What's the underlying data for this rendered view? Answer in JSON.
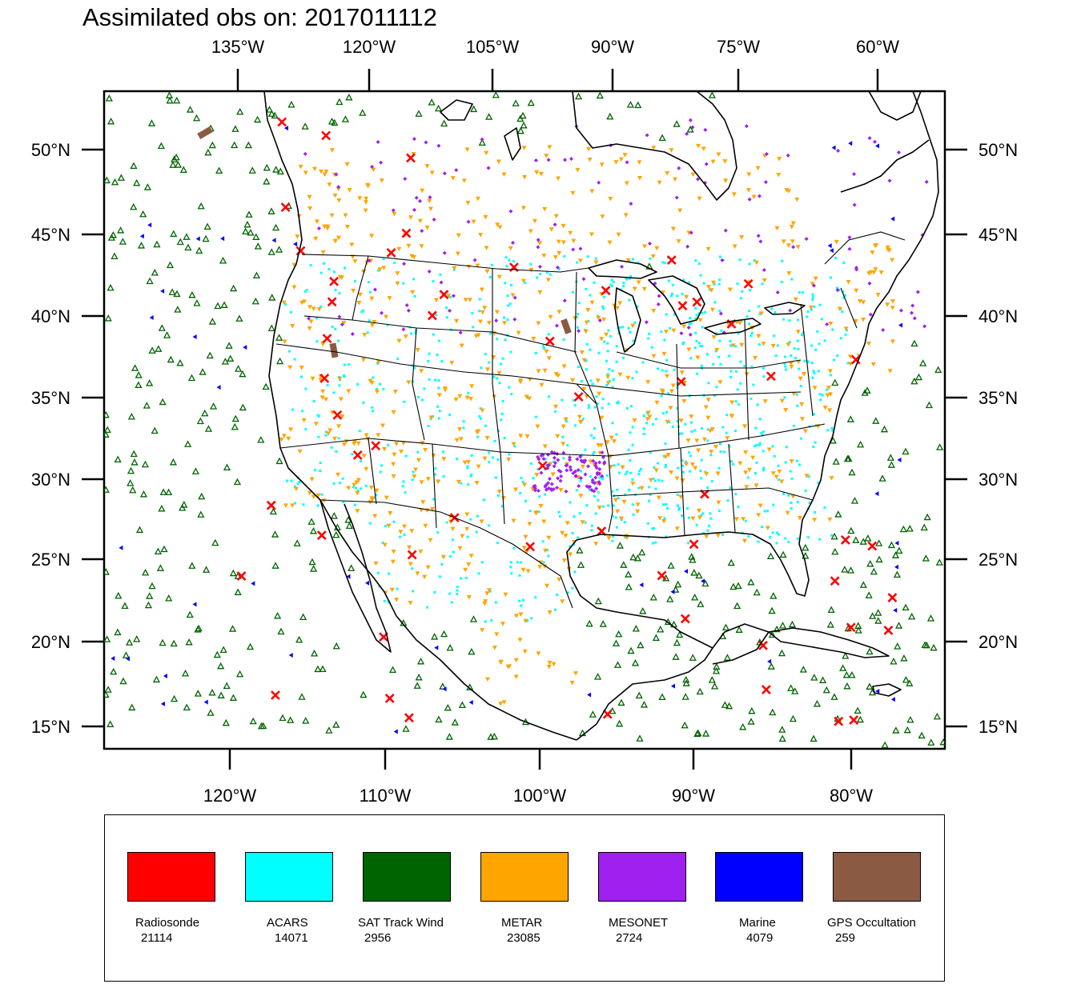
{
  "title": "Assimilated obs on: 2017011112",
  "map": {
    "projection": "lambert-conic",
    "top_lon_labels": [
      "135°W",
      "120°W",
      "105°W",
      "90°W",
      "75°W",
      "60°W"
    ],
    "bottom_lon_labels": [
      "120°W",
      "110°W",
      "100°W",
      "90°W",
      "80°W"
    ],
    "lat_labels": [
      "50°N",
      "45°N",
      "40°N",
      "35°N",
      "30°N",
      "25°N",
      "20°N",
      "15°N"
    ],
    "land_outline_color": "#000000",
    "ocean_color": "#ffffff"
  },
  "legend": {
    "items": [
      {
        "name": "Radiosonde",
        "count": "21114",
        "color": "#ff0000",
        "marker": "x-cross"
      },
      {
        "name": "ACARS",
        "count": "14071",
        "color": "#00ffff",
        "marker": "dot"
      },
      {
        "name": "SAT Track Wind",
        "count": "2956",
        "color": "#006400",
        "marker": "triangle-up"
      },
      {
        "name": "METAR",
        "count": "23085",
        "color": "#ffa500",
        "marker": "triangle-down"
      },
      {
        "name": "MESONET",
        "count": "2724",
        "color": "#a020f0",
        "marker": "diamond"
      },
      {
        "name": "Marine",
        "count": "4079",
        "color": "#0000ff",
        "marker": "triangle-left"
      },
      {
        "name": "GPS Occultation",
        "count": "259",
        "color": "#8b5a43",
        "marker": "slab"
      }
    ]
  }
}
